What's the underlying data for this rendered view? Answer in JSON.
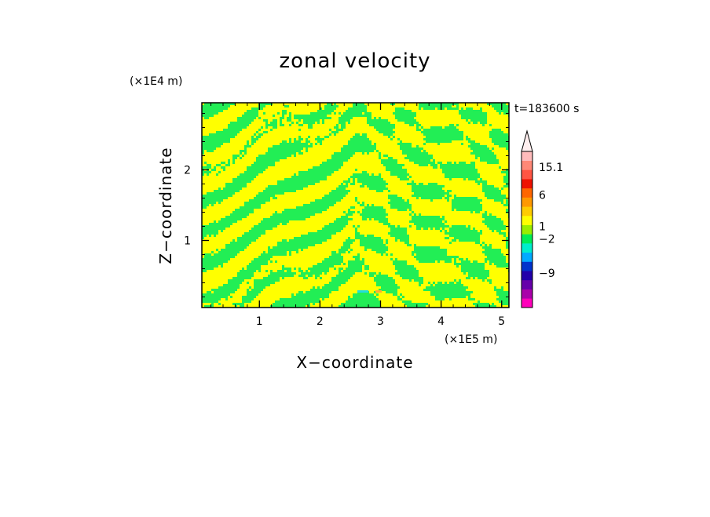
{
  "chart_data": {
    "type": "heatmap",
    "title": "zonal velocity",
    "xlabel": "X−coordinate",
    "ylabel": "Z−coordinate",
    "x_unit": "(×1E5 m)",
    "y_unit": "(×1E4 m)",
    "time_label": "t=183600 s",
    "xlim": [
      0.05,
      5.12
    ],
    "ylim": [
      0.05,
      2.95
    ],
    "x_ticks": [
      {
        "value": 1,
        "label": "1"
      },
      {
        "value": 2,
        "label": "2"
      },
      {
        "value": 3,
        "label": "3"
      },
      {
        "value": 4,
        "label": "4"
      },
      {
        "value": 5,
        "label": "5"
      }
    ],
    "y_ticks": [
      {
        "value": 1,
        "label": "1"
      },
      {
        "value": 2,
        "label": "2"
      }
    ],
    "x_minor_step": 0.2,
    "y_minor_step": 0.2,
    "colorbar": {
      "bins": [
        {
          "color": "#ff00bb"
        },
        {
          "color": "#aa00aa"
        },
        {
          "color": "#6600aa"
        },
        {
          "color": "#2200aa"
        },
        {
          "color": "#0033cc"
        },
        {
          "color": "#00aaff"
        },
        {
          "color": "#00eecc"
        },
        {
          "color": "#00ee55"
        },
        {
          "color": "#99ee00"
        },
        {
          "color": "#ffff00"
        },
        {
          "color": "#ffcc00"
        },
        {
          "color": "#ff9900"
        },
        {
          "color": "#ff6600"
        },
        {
          "color": "#ee1100"
        },
        {
          "color": "#ff5544"
        },
        {
          "color": "#ff8877"
        },
        {
          "color": "#ffbbbb"
        }
      ],
      "labels": [
        {
          "text": "15.1",
          "level": 0.9
        },
        {
          "text": "6",
          "level": 0.72
        },
        {
          "text": "1",
          "level": 0.52
        },
        {
          "text": "−2",
          "level": 0.44
        },
        {
          "text": "−9",
          "level": 0.22
        }
      ],
      "arrow_color": "#ffeeee"
    },
    "field_colors": {
      "yellow": "#ffff00",
      "green": "#22ee55",
      "cyan": "#22dddd",
      "orange": "#ffaa33"
    }
  }
}
